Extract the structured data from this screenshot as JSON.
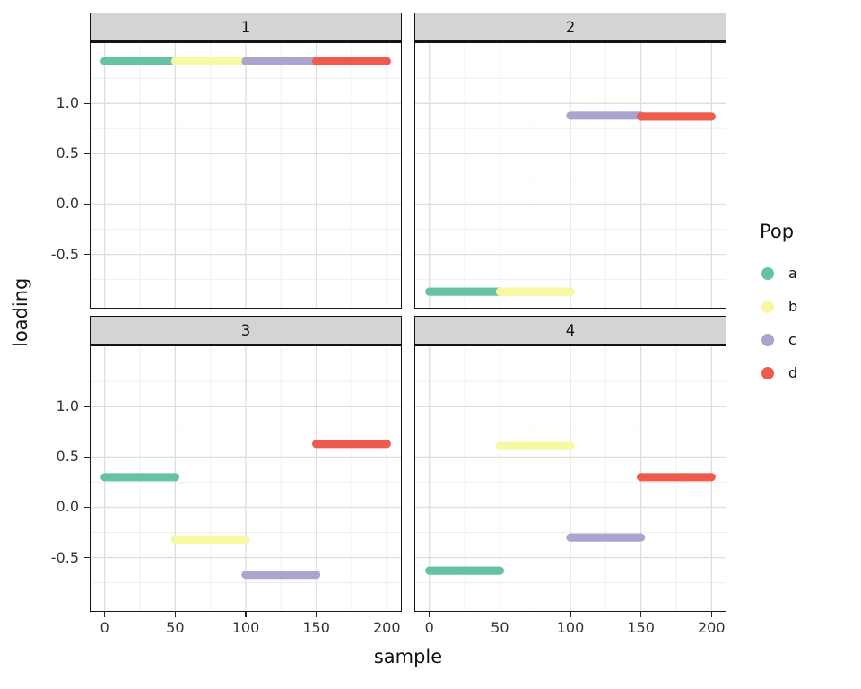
{
  "chart_data": {
    "type": "scatter",
    "title": "",
    "xlabel": "sample",
    "ylabel": "loading",
    "legend_title": "Pop",
    "legend_position": "right",
    "grid": true,
    "facet_layout": "2x2",
    "xlim": [
      -10,
      210
    ],
    "ylim": [
      -1.03,
      1.6
    ],
    "x_ticks": [
      0,
      50,
      100,
      150,
      200
    ],
    "x_tick_labels": [
      "0",
      "50",
      "100",
      "150",
      "200"
    ],
    "x_minor": [
      25,
      75,
      125,
      175
    ],
    "y_ticks": [
      -0.5,
      0.0,
      0.5,
      1.0
    ],
    "y_tick_labels": [
      "-0.5",
      "0.0",
      "0.5",
      "1.0"
    ],
    "y_minor": [
      -0.75,
      -0.25,
      0.25,
      0.75,
      1.25
    ],
    "grid_major_color": "#dedede",
    "grid_minor_color": "#efefef",
    "points_per_segment": 50,
    "point_radius": 4.6,
    "pops": [
      {
        "name": "a",
        "color": "#66c2a5"
      },
      {
        "name": "b",
        "color": "#f7f7a4"
      },
      {
        "name": "c",
        "color": "#aba4cf"
      },
      {
        "name": "d",
        "color": "#ee5a4c"
      }
    ],
    "facets": [
      {
        "label": "1",
        "segments": [
          {
            "pop": "a",
            "x_start": 0,
            "x_end": 50,
            "y": 1.42
          },
          {
            "pop": "b",
            "x_start": 50,
            "x_end": 100,
            "y": 1.42
          },
          {
            "pop": "c",
            "x_start": 100,
            "x_end": 150,
            "y": 1.42
          },
          {
            "pop": "d",
            "x_start": 150,
            "x_end": 200,
            "y": 1.42
          }
        ]
      },
      {
        "label": "2",
        "segments": [
          {
            "pop": "a",
            "x_start": 0,
            "x_end": 50,
            "y": -0.87
          },
          {
            "pop": "b",
            "x_start": 50,
            "x_end": 100,
            "y": -0.87
          },
          {
            "pop": "c",
            "x_start": 100,
            "x_end": 150,
            "y": 0.88
          },
          {
            "pop": "d",
            "x_start": 150,
            "x_end": 200,
            "y": 0.87
          }
        ]
      },
      {
        "label": "3",
        "segments": [
          {
            "pop": "a",
            "x_start": 0,
            "x_end": 50,
            "y": 0.3
          },
          {
            "pop": "b",
            "x_start": 50,
            "x_end": 100,
            "y": -0.32
          },
          {
            "pop": "c",
            "x_start": 100,
            "x_end": 150,
            "y": -0.67
          },
          {
            "pop": "d",
            "x_start": 150,
            "x_end": 200,
            "y": 0.63
          }
        ]
      },
      {
        "label": "4",
        "segments": [
          {
            "pop": "a",
            "x_start": 0,
            "x_end": 50,
            "y": -0.63
          },
          {
            "pop": "b",
            "x_start": 50,
            "x_end": 100,
            "y": 0.61
          },
          {
            "pop": "c",
            "x_start": 100,
            "x_end": 150,
            "y": -0.3
          },
          {
            "pop": "d",
            "x_start": 150,
            "x_end": 200,
            "y": 0.3
          }
        ]
      }
    ]
  }
}
